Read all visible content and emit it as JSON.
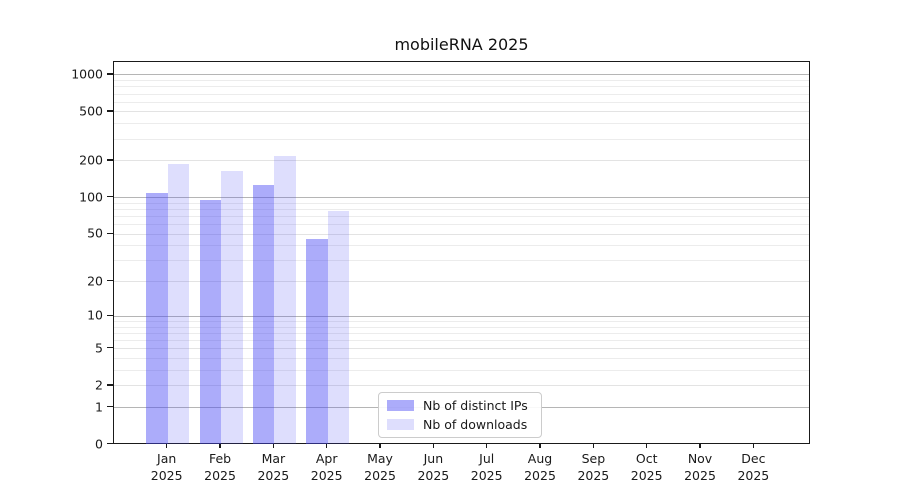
{
  "title": "mobileRNA 2025",
  "chart_data": {
    "type": "bar",
    "title": "mobileRNA 2025",
    "categories": [
      "Jan",
      "Feb",
      "Mar",
      "Apr",
      "May",
      "Jun",
      "Jul",
      "Aug",
      "Sep",
      "Oct",
      "Nov",
      "Dec"
    ],
    "category_year": "2025",
    "series": [
      {
        "name": "Nb of distinct IPs",
        "color": "#4646F573",
        "values": [
          110,
          96,
          126,
          46,
          0,
          0,
          0,
          0,
          0,
          0,
          0,
          0
        ]
      },
      {
        "name": "Nb of downloads",
        "color": "#4646F52E",
        "values": [
          190,
          165,
          220,
          77,
          0,
          0,
          0,
          0,
          0,
          0,
          0,
          0
        ]
      }
    ],
    "y_axis": {
      "scale": "log10(value+1)",
      "tick_values": [
        0,
        1,
        2,
        5,
        10,
        20,
        50,
        100,
        200,
        500,
        1000
      ],
      "decade_ticks": [
        1,
        10,
        100,
        1000
      ],
      "minor_grid_values": [
        3,
        4,
        6,
        7,
        8,
        9,
        30,
        40,
        60,
        70,
        80,
        90,
        300,
        400,
        600,
        700,
        800,
        900
      ],
      "range": [
        0,
        1250
      ],
      "grid": true
    },
    "legend": {
      "position": "lower-center"
    }
  },
  "colors": {
    "bar_ips": "#4646F573",
    "bar_downloads": "#4646F52E",
    "grid_decade": "#b5b5b5",
    "grid_minor": "#ececec",
    "spine": "#1a1a1a",
    "legend_border": "#cccccc"
  }
}
